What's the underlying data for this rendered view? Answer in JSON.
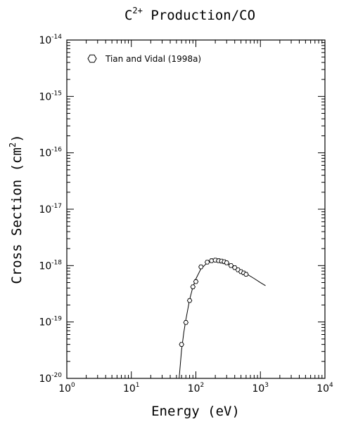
{
  "chart_data": {
    "type": "scatter",
    "title": {
      "base": "C",
      "sup": "2+",
      "rest": " Production/CO"
    },
    "xlabel": "Energy (eV)",
    "ylabel": {
      "base": "Cross Section (cm",
      "sup": "2",
      "end": ")"
    },
    "x_scale": "log",
    "y_scale": "log",
    "xlim": [
      1,
      10000
    ],
    "ylim": [
      1e-20,
      1e-14
    ],
    "grid": false,
    "legend_position": "top-left",
    "x_ticks": [
      {
        "base": "10",
        "exp": "0",
        "value": 1
      },
      {
        "base": "10",
        "exp": "1",
        "value": 10
      },
      {
        "base": "10",
        "exp": "2",
        "value": 100
      },
      {
        "base": "10",
        "exp": "3",
        "value": 1000
      },
      {
        "base": "10",
        "exp": "4",
        "value": 10000
      }
    ],
    "y_ticks": [
      {
        "base": "10",
        "exp": "-20",
        "value": 1e-20
      },
      {
        "base": "10",
        "exp": "-19",
        "value": 1e-19
      },
      {
        "base": "10",
        "exp": "-18",
        "value": 1e-18
      },
      {
        "base": "10",
        "exp": "-17",
        "value": 1e-17
      },
      {
        "base": "10",
        "exp": "-16",
        "value": 1e-16
      },
      {
        "base": "10",
        "exp": "-15",
        "value": 1e-15
      },
      {
        "base": "10",
        "exp": "-14",
        "value": 1e-14
      }
    ],
    "series": [
      {
        "name": "Tian and Vidal (1998a)",
        "marker": "hexagon",
        "points": [
          [
            60,
            4e-20
          ],
          [
            70,
            9.8e-20
          ],
          [
            80,
            2.4e-19
          ],
          [
            90,
            4.2e-19
          ],
          [
            100,
            5.2e-19
          ],
          [
            120,
            9.5e-19
          ],
          [
            150,
            1.15e-18
          ],
          [
            175,
            1.22e-18
          ],
          [
            200,
            1.25e-18
          ],
          [
            225,
            1.22e-18
          ],
          [
            250,
            1.2e-18
          ],
          [
            275,
            1.17e-18
          ],
          [
            300,
            1.12e-18
          ],
          [
            350,
            1e-18
          ],
          [
            400,
            9.2e-19
          ],
          [
            450,
            8.4e-19
          ],
          [
            500,
            7.8e-19
          ],
          [
            550,
            7.4e-19
          ],
          [
            600,
            7e-19
          ]
        ]
      }
    ],
    "fit_curve": [
      [
        55,
        1e-20
      ],
      [
        60,
        3.2e-20
      ],
      [
        65,
        6.5e-20
      ],
      [
        70,
        1.1e-19
      ],
      [
        80,
        2.5e-19
      ],
      [
        90,
        4.2e-19
      ],
      [
        100,
        5.8e-19
      ],
      [
        120,
        8.8e-19
      ],
      [
        150,
        1.12e-18
      ],
      [
        175,
        1.2e-18
      ],
      [
        200,
        1.22e-18
      ],
      [
        250,
        1.18e-18
      ],
      [
        300,
        1.1e-18
      ],
      [
        400,
        9.4e-19
      ],
      [
        500,
        8.1e-19
      ],
      [
        600,
        7.2e-19
      ],
      [
        800,
        5.9e-19
      ],
      [
        1000,
        5e-19
      ],
      [
        1200,
        4.4e-19
      ]
    ]
  }
}
